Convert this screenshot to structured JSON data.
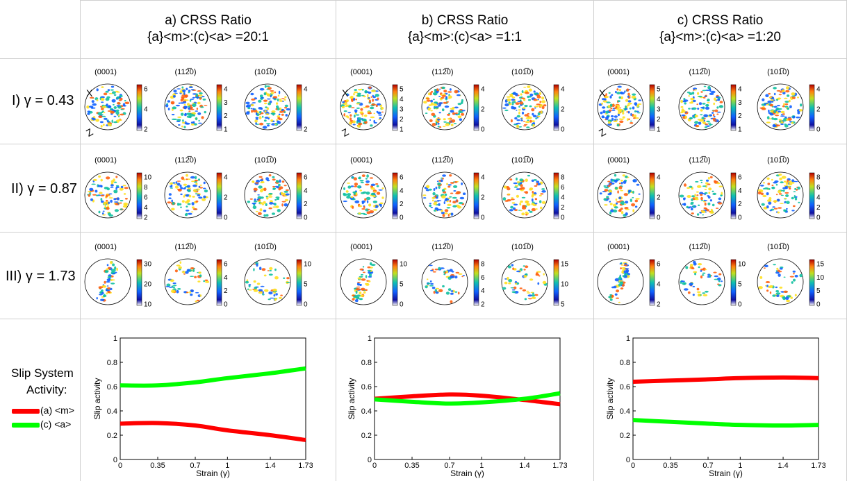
{
  "columns": [
    {
      "title": "a) CRSS Ratio",
      "subtitle": "{a}<m>:(c)<a> =20:1"
    },
    {
      "title": "b) CRSS Ratio",
      "subtitle": "{a}<m>:(c)<a> =1:1"
    },
    {
      "title": "c) CRSS Ratio",
      "subtitle": "{a}<m>:(c)<a> =1:20"
    }
  ],
  "rows": [
    {
      "label": "I) γ = 0.43"
    },
    {
      "label": "II) γ = 0.87"
    },
    {
      "label": "III) γ = 1.73"
    }
  ],
  "pole_titles": [
    "(0001)",
    "(11̅2̅0)",
    "(10̅10)"
  ],
  "pole_titles_plain": [
    "(0001)",
    "(112̅0)",
    "(101̅0)"
  ],
  "colorbars": [
    [
      [
        "6",
        "4",
        "2"
      ],
      [
        "4",
        "3",
        "2",
        "1"
      ],
      [
        "4",
        "2"
      ]
    ],
    [
      [
        "5",
        "4",
        "3",
        "2",
        "1"
      ],
      [
        "4",
        "2",
        "0"
      ],
      [
        "4",
        "2",
        "0"
      ]
    ],
    [
      [
        "5",
        "4",
        "3",
        "2",
        "1"
      ],
      [
        "4",
        "3",
        "2",
        "1"
      ],
      [
        "4",
        "2",
        "0"
      ]
    ],
    [
      [
        "10",
        "8",
        "6",
        "4",
        "2"
      ],
      [
        "4",
        "2",
        "0"
      ],
      [
        "6",
        "4",
        "2",
        "0"
      ]
    ],
    [
      [
        "6",
        "4",
        "2",
        "0"
      ],
      [
        "4",
        "2",
        "0"
      ],
      [
        "8",
        "6",
        "4",
        "2",
        "0"
      ]
    ],
    [
      [
        "4",
        "2",
        "0"
      ],
      [
        "6",
        "4",
        "2",
        "0"
      ],
      [
        "8",
        "6",
        "4",
        "2",
        "0"
      ]
    ],
    [
      [
        "30",
        "20",
        "10"
      ],
      [
        "6",
        "4",
        "2",
        "0"
      ],
      [
        "10",
        "5",
        "0"
      ]
    ],
    [
      [
        "10",
        "5",
        "0"
      ],
      [
        "8",
        "6",
        "4",
        "2"
      ],
      [
        "15",
        "10",
        "5"
      ]
    ],
    [
      [
        "6",
        "4",
        "2"
      ],
      [
        "10",
        "5",
        "0"
      ],
      [
        "15",
        "10",
        "5",
        "0"
      ]
    ]
  ],
  "axis_marks": {
    "x": "X",
    "z": "Z"
  },
  "legend": {
    "title_line1": "Slip System",
    "title_line2": "Activity:",
    "items": [
      {
        "label": "(a) <m>",
        "color": "#ff0000"
      },
      {
        "label": "(c) <a>",
        "color": "#00ff00"
      }
    ]
  },
  "chart_data": [
    {
      "type": "line",
      "xlabel": "Strain (γ)",
      "ylabel": "Slip activity",
      "x": [
        0,
        0.35,
        0.7,
        1,
        1.4,
        1.73
      ],
      "xticks": [
        "0",
        "0.35",
        "0.7",
        "1",
        "1.4",
        "1.73"
      ],
      "yticks": [
        "0",
        "0.2",
        "0.4",
        "0.6",
        "0.8",
        "1"
      ],
      "ylim": [
        0,
        1
      ],
      "series": [
        {
          "name": "(a) <m>",
          "color": "#ff0000",
          "values": [
            0.295,
            0.3,
            0.28,
            0.24,
            0.2,
            0.16
          ]
        },
        {
          "name": "(c) <a>",
          "color": "#00ff00",
          "values": [
            0.61,
            0.61,
            0.635,
            0.67,
            0.71,
            0.75
          ]
        }
      ]
    },
    {
      "type": "line",
      "xlabel": "Strain (γ)",
      "ylabel": "Slip activity",
      "x": [
        0,
        0.35,
        0.7,
        1,
        1.4,
        1.73
      ],
      "xticks": [
        "0",
        "0.35",
        "0.7",
        "1",
        "1.4",
        "1.73"
      ],
      "yticks": [
        "0",
        "0.2",
        "0.4",
        "0.6",
        "0.8",
        "1"
      ],
      "ylim": [
        0,
        1
      ],
      "series": [
        {
          "name": "(a) <m>",
          "color": "#ff0000",
          "values": [
            0.5,
            0.52,
            0.535,
            0.525,
            0.49,
            0.455
          ]
        },
        {
          "name": "(c) <a>",
          "color": "#00ff00",
          "values": [
            0.495,
            0.475,
            0.46,
            0.47,
            0.5,
            0.545
          ]
        }
      ]
    },
    {
      "type": "line",
      "xlabel": "Strain (γ)",
      "ylabel": "Slip activity",
      "x": [
        0,
        0.35,
        0.7,
        1,
        1.4,
        1.73
      ],
      "xticks": [
        "0",
        "0.35",
        "0.7",
        "1",
        "1.4",
        "1.73"
      ],
      "yticks": [
        "0",
        "0.2",
        "0.4",
        "0.6",
        "0.8",
        "1"
      ],
      "ylim": [
        0,
        1
      ],
      "series": [
        {
          "name": "(a) <m>",
          "color": "#ff0000",
          "values": [
            0.64,
            0.65,
            0.66,
            0.67,
            0.675,
            0.67
          ]
        },
        {
          "name": "(c) <a>",
          "color": "#00ff00",
          "values": [
            0.325,
            0.31,
            0.295,
            0.285,
            0.28,
            0.285
          ]
        }
      ]
    }
  ]
}
